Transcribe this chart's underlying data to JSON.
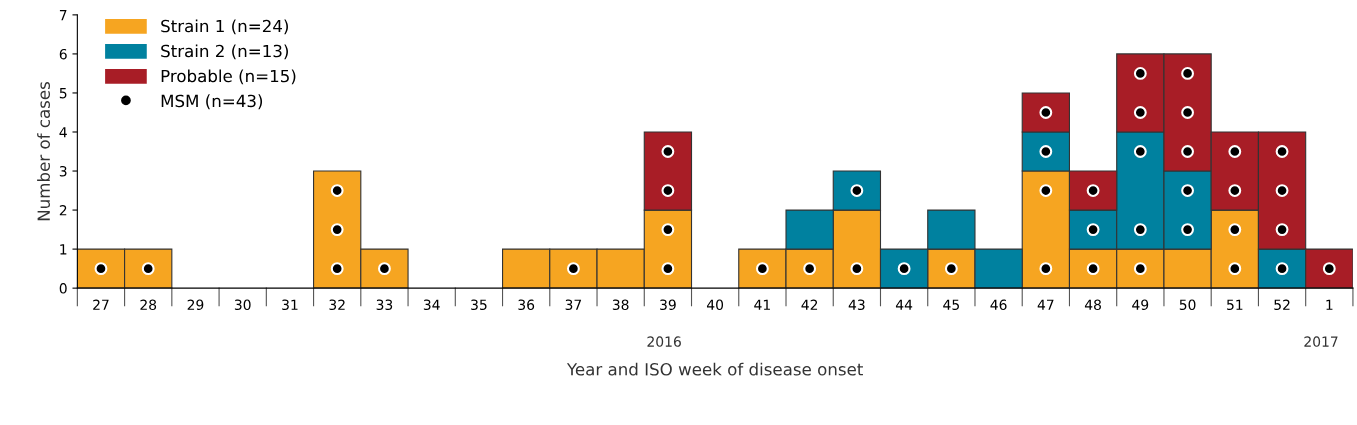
{
  "chart_data": {
    "type": "bar",
    "stacked": true,
    "ylabel": "Number of cases",
    "xlabel": "Year and ISO week of disease onset",
    "categories": [
      "27",
      "28",
      "29",
      "30",
      "31",
      "32",
      "33",
      "34",
      "35",
      "36",
      "37",
      "38",
      "39",
      "40",
      "41",
      "42",
      "43",
      "44",
      "45",
      "46",
      "47",
      "48",
      "49",
      "50",
      "51",
      "52",
      "1"
    ],
    "series": [
      {
        "name": "Strain 1 (n=24)",
        "color": "#f6a521",
        "values": [
          1,
          1,
          0,
          0,
          0,
          3,
          1,
          0,
          0,
          1,
          1,
          1,
          2,
          0,
          1,
          1,
          2,
          0,
          1,
          0,
          3,
          1,
          1,
          1,
          2,
          0,
          0
        ]
      },
      {
        "name": "Strain 2 (n=13)",
        "color": "#00819f",
        "values": [
          0,
          0,
          0,
          0,
          0,
          0,
          0,
          0,
          0,
          0,
          0,
          0,
          0,
          0,
          0,
          1,
          1,
          1,
          1,
          1,
          1,
          1,
          3,
          2,
          0,
          1,
          0
        ]
      },
      {
        "name": "Probable (n=15)",
        "color": "#a81d26",
        "values": [
          0,
          0,
          0,
          0,
          0,
          0,
          0,
          0,
          0,
          0,
          0,
          0,
          2,
          0,
          0,
          0,
          0,
          0,
          0,
          0,
          1,
          1,
          2,
          3,
          2,
          3,
          1
        ]
      },
      {
        "name": "MSM (n=43)",
        "type": "scatter",
        "color": "#000000",
        "marker": "circle",
        "x": [
          "27",
          "28",
          "32",
          "32",
          "32",
          "33",
          "37",
          "39",
          "39",
          "39",
          "39",
          "41",
          "42",
          "43",
          "43",
          "44",
          "45",
          "47",
          "47",
          "47",
          "47",
          "48",
          "48",
          "48",
          "49",
          "49",
          "49",
          "49",
          "49",
          "50",
          "50",
          "50",
          "50",
          "50",
          "51",
          "51",
          "51",
          "51",
          "52",
          "52",
          "52",
          "52",
          "1"
        ],
        "values": [
          0.5,
          0.5,
          0.5,
          1.5,
          2.5,
          0.5,
          0.5,
          0.5,
          1.5,
          2.5,
          3.5,
          0.5,
          0.5,
          0.5,
          2.5,
          0.5,
          0.5,
          0.5,
          2.5,
          3.5,
          4.5,
          0.5,
          1.5,
          2.5,
          0.5,
          1.5,
          3.5,
          4.5,
          5.5,
          1.5,
          2.5,
          3.5,
          4.5,
          5.5,
          0.5,
          1.5,
          2.5,
          3.5,
          0.5,
          1.5,
          2.5,
          3.5,
          0.5
        ]
      }
    ],
    "ylim": [
      0,
      7
    ],
    "yticks": [
      0,
      1,
      2,
      3,
      4,
      5,
      6,
      7
    ],
    "grid": false,
    "legend": "top left",
    "annotations": [
      "2016",
      "2017"
    ]
  }
}
